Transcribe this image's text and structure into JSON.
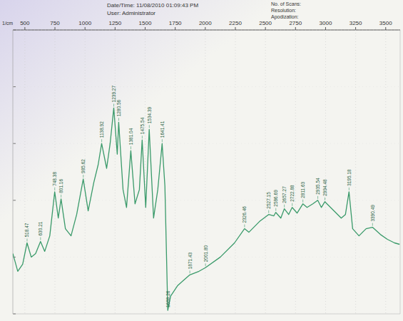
{
  "chart_data": {
    "type": "line",
    "header": [
      "Date/Time: 11/08/2010 01:09:43 PM",
      "User: Administrator",
      "No. of Scans:",
      "Resolution:",
      "Apodization:"
    ],
    "x_label": "1/cm",
    "color": "#3a9a6a",
    "grid": true,
    "tick_labels": "x",
    "xlim": [
      400,
      3620
    ],
    "xticks": [
      500,
      750,
      1000,
      1250,
      1500,
      1750,
      2000,
      2250,
      2500,
      2750,
      3000,
      3250,
      3500
    ],
    "ylim": [
      0,
      100
    ],
    "yticks": [
      0,
      20,
      40,
      60,
      80,
      100
    ],
    "x": [
      400,
      441,
      482,
      518,
      553,
      589,
      630,
      665,
      707,
      748,
      778,
      801,
      837,
      884,
      931,
      985,
      1026,
      1073,
      1109,
      1138,
      1180,
      1209,
      1239,
      1268,
      1280,
      1316,
      1345,
      1381,
      1416,
      1452,
      1475,
      1505,
      1534,
      1570,
      1605,
      1641,
      1664,
      1688,
      1712,
      1771,
      1871,
      1948,
      2001,
      2125,
      2243,
      2326,
      2362,
      2450,
      2527,
      2569,
      2586,
      2628,
      2657,
      2693,
      2722,
      2764,
      2811,
      2846,
      2894,
      2935,
      2965,
      2994,
      3071,
      3130,
      3165,
      3195,
      3225,
      3278,
      3337,
      3390,
      3455,
      3514,
      3573,
      3615
    ],
    "values": [
      21.25,
      15,
      17.5,
      25,
      20,
      21.25,
      25.5,
      22,
      27.5,
      43,
      33.75,
      40.5,
      30,
      27.5,
      35,
      47.5,
      36.25,
      46.25,
      52.5,
      60,
      51.25,
      60,
      72.5,
      56.25,
      67.5,
      43.75,
      37.5,
      57.5,
      38.75,
      43.75,
      61.25,
      37.5,
      65,
      33.75,
      43.75,
      60,
      45,
      1.25,
      6.25,
      10,
      13.75,
      15,
      16.25,
      20,
      25,
      30,
      28.75,
      32.5,
      35,
      34.5,
      35.75,
      33.75,
      37,
      35,
      37.5,
      35.5,
      38.75,
      37.5,
      38.75,
      40,
      37.5,
      39.5,
      36.25,
      33.75,
      35,
      43,
      30,
      27.5,
      30,
      30.5,
      28,
      26.25,
      25,
      24.5
    ],
    "annotations": [
      {
        "x": 518.47,
        "y": 25,
        "label": "518.47"
      },
      {
        "x": 630.21,
        "y": 25.5,
        "label": "630.21"
      },
      {
        "x": 748.38,
        "y": 43,
        "label": "748.38"
      },
      {
        "x": 801.16,
        "y": 40.5,
        "label": "801.16"
      },
      {
        "x": 985.62,
        "y": 47.5,
        "label": "985.62"
      },
      {
        "x": 1138.92,
        "y": 60,
        "label": "1138.92"
      },
      {
        "x": 1239.27,
        "y": 72.5,
        "label": "1239.27"
      },
      {
        "x": 1280.56,
        "y": 67.5,
        "label": "1280.56"
      },
      {
        "x": 1381.04,
        "y": 57.5,
        "label": "1381.04"
      },
      {
        "x": 1475.54,
        "y": 61.25,
        "label": "1475.54"
      },
      {
        "x": 1534.39,
        "y": 65,
        "label": "1534.39"
      },
      {
        "x": 1641.41,
        "y": 60,
        "label": "1641.41"
      },
      {
        "x": 1688.26,
        "y": 1.25,
        "label": "1688.26"
      },
      {
        "x": 1871.43,
        "y": 13.75,
        "label": "1871.43"
      },
      {
        "x": 2001.8,
        "y": 16.25,
        "label": "2001.80"
      },
      {
        "x": 2326.46,
        "y": 30,
        "label": "2326.46"
      },
      {
        "x": 2527.15,
        "y": 35,
        "label": "2527.15"
      },
      {
        "x": 2586.69,
        "y": 35.75,
        "label": "2586.69"
      },
      {
        "x": 2657.27,
        "y": 37,
        "label": "2657.27"
      },
      {
        "x": 2722.88,
        "y": 37.5,
        "label": "2722.88"
      },
      {
        "x": 2811.63,
        "y": 38.75,
        "label": "2811.63"
      },
      {
        "x": 2935.54,
        "y": 40,
        "label": "2935.54"
      },
      {
        "x": 2994.48,
        "y": 39.5,
        "label": "2994.48"
      },
      {
        "x": 3195.18,
        "y": 43,
        "label": "3195.18"
      },
      {
        "x": 3390.49,
        "y": 30.5,
        "label": "3390.49"
      }
    ]
  }
}
